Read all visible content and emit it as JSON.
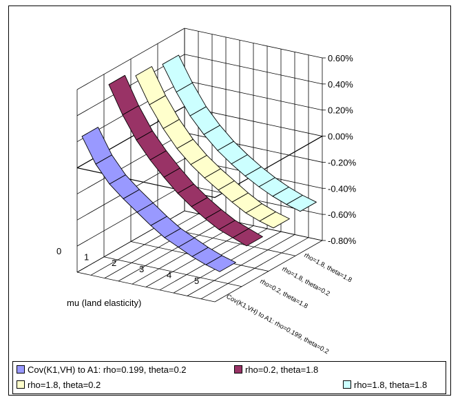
{
  "chart_data": {
    "type": "area",
    "title": "",
    "xlabel": "mu (land elasticity)",
    "x": [
      0,
      0.5,
      1,
      1.5,
      2,
      2.5,
      3,
      3.5,
      4,
      4.5,
      5
    ],
    "x_ticks": [
      "0",
      "1",
      "2",
      "3",
      "4",
      "5"
    ],
    "zlim": [
      -0.8,
      0.6
    ],
    "z_unit": "%",
    "z_ticks": [
      "0.60%",
      "0.40%",
      "0.20%",
      "0.00%",
      "-0.20%",
      "-0.40%",
      "-0.60%",
      "-0.80%"
    ],
    "depth_labels": [
      "Cov(K1,VH) to A1: rho=0.199, theta=0.2",
      "rho=0.2, theta=1.8",
      "rho=1.8, theta=0.2",
      "rho=1.8, theta=1.8"
    ],
    "grid": true,
    "legend_position": "bottom",
    "series": [
      {
        "name": "Cov(K1,VH) to A1: rho=0.199, theta=0.2",
        "color": "#9999ff",
        "values": [
          0.22,
          0.03,
          -0.1,
          -0.19,
          -0.27,
          -0.35,
          -0.42,
          -0.47,
          -0.52,
          -0.56,
          -0.59
        ]
      },
      {
        "name": "rho=0.2, theta=1.8",
        "color": "#993366",
        "values": [
          0.5,
          0.29,
          0.12,
          -0.01,
          -0.12,
          -0.22,
          -0.3,
          -0.37,
          -0.43,
          -0.47,
          -0.51
        ]
      },
      {
        "name": "rho=1.8, theta=0.2",
        "color": "#ffffcc",
        "values": [
          0.45,
          0.25,
          0.09,
          -0.04,
          -0.14,
          -0.22,
          -0.29,
          -0.36,
          -0.42,
          -0.46,
          -0.49
        ]
      },
      {
        "name": "rho=1.8, theta=1.8",
        "color": "#ccffff",
        "values": [
          0.42,
          0.23,
          0.07,
          -0.05,
          -0.15,
          -0.23,
          -0.3,
          -0.36,
          -0.41,
          -0.45,
          -0.48
        ]
      }
    ]
  },
  "legend": {
    "items": [
      {
        "label": "Cov(K1,VH) to A1: rho=0.199, theta=0.2",
        "color": "#9999ff"
      },
      {
        "label": "rho=0.2, theta=1.8",
        "color": "#993366"
      },
      {
        "label": "rho=1.8, theta=0.2",
        "color": "#ffffcc"
      },
      {
        "label": "rho=1.8, theta=1.8",
        "color": "#ccffff"
      }
    ]
  }
}
